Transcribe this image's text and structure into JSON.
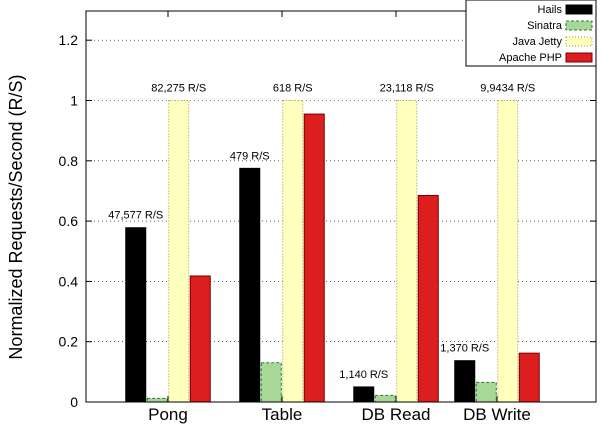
{
  "chart_data": {
    "type": "bar",
    "title": "",
    "xlabel": "",
    "ylabel": "Normalized Requests/Second (R/S)",
    "ylim": [
      0,
      1.3
    ],
    "yticks": [
      "0",
      "0.2",
      "0.4",
      "0.6",
      "0.8",
      "1",
      "1.2"
    ],
    "ytick_values": [
      0,
      0.2,
      0.4,
      0.6,
      0.8,
      1.0,
      1.2
    ],
    "grid": "horizontal-dotted",
    "legend_position": "top-right",
    "categories": [
      "Pong",
      "Table",
      "DB Read",
      "DB Write"
    ],
    "series": [
      {
        "name": "Hails",
        "color": "#000000",
        "pattern": "solid",
        "values": [
          0.578,
          0.775,
          0.05,
          0.137
        ]
      },
      {
        "name": "Sinatra",
        "color": "#9ed28e",
        "pattern": "dash-border-green",
        "values": [
          0.012,
          0.13,
          0.022,
          0.065
        ]
      },
      {
        "name": "Java Jetty",
        "color": "#ffffbe",
        "pattern": "dotted-border",
        "values": [
          1.0,
          1.0,
          1.0,
          1.0
        ]
      },
      {
        "name": "Apache PHP",
        "color": "#dc1e1e",
        "pattern": "solid",
        "values": [
          0.418,
          0.955,
          0.685,
          0.162
        ]
      }
    ],
    "annotations": [
      {
        "category": "Pong",
        "series": "Hails",
        "text": "47,577 R/S"
      },
      {
        "category": "Pong",
        "series": "Java Jetty",
        "text": "82,275 R/S"
      },
      {
        "category": "Table",
        "series": "Hails",
        "text": "479 R/S"
      },
      {
        "category": "Table",
        "series": "Java Jetty",
        "text": "618 R/S"
      },
      {
        "category": "DB Read",
        "series": "Hails",
        "text": "1,140 R/S"
      },
      {
        "category": "DB Read",
        "series": "Java Jetty",
        "text": "23,118 R/S"
      },
      {
        "category": "DB Write",
        "series": "Hails",
        "text": "1,370 R/S"
      },
      {
        "category": "DB Write",
        "series": "Java Jetty",
        "text": "9,9434 R/S"
      }
    ]
  }
}
